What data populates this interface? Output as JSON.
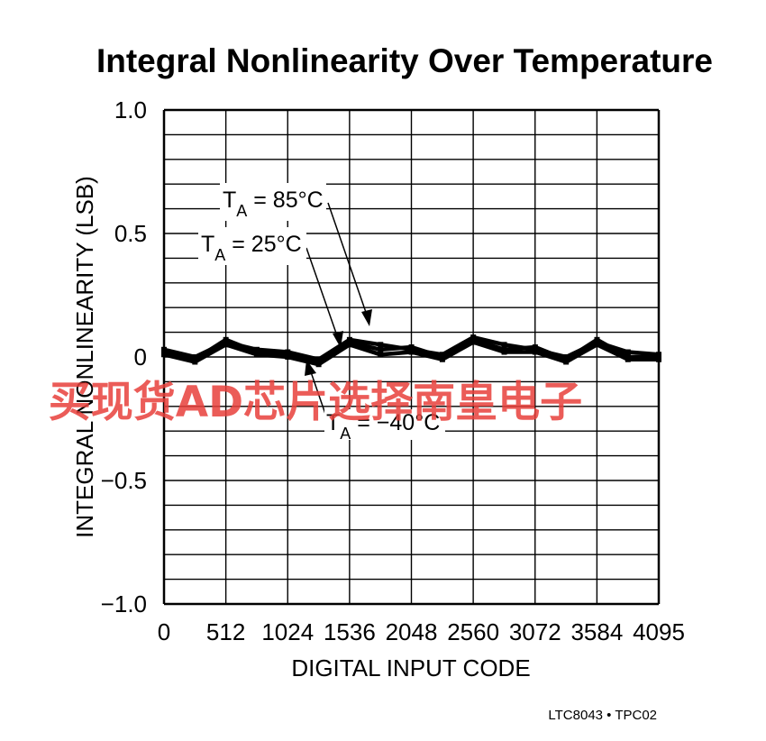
{
  "chart_data": {
    "type": "line",
    "title": "Integral Nonlinearity Over Temperature",
    "xlabel": "DIGITAL INPUT CODE",
    "ylabel": "INTEGRAL NONLINEARITY (LSB)",
    "xlim": [
      0,
      4095
    ],
    "ylim": [
      -1.0,
      1.0
    ],
    "x_ticks": [
      "0",
      "512",
      "1024",
      "1536",
      "2048",
      "2560",
      "3072",
      "3584",
      "4095"
    ],
    "y_ticks": [
      "1.0",
      "0.5",
      "0",
      "−0.5",
      "−1.0"
    ],
    "grid": true,
    "series": [
      {
        "name": "TA = 85°C",
        "x": [
          0,
          256,
          512,
          768,
          1024,
          1280,
          1536,
          1792,
          2048,
          2304,
          2560,
          2816,
          3072,
          3328,
          3584,
          3840,
          4095
        ],
        "y": [
          0.03,
          0.0,
          0.06,
          0.03,
          0.02,
          -0.01,
          0.07,
          0.05,
          0.03,
          0.01,
          0.08,
          0.05,
          0.03,
          0.0,
          0.06,
          0.02,
          0.01
        ]
      },
      {
        "name": "TA = 25°C",
        "x": [
          0,
          256,
          512,
          768,
          1024,
          1280,
          1536,
          1792,
          2048,
          2304,
          2560,
          2816,
          3072,
          3328,
          3584,
          3840,
          4095
        ],
        "y": [
          0.02,
          -0.01,
          0.07,
          0.02,
          0.01,
          -0.02,
          0.06,
          0.03,
          0.04,
          0.0,
          0.07,
          0.03,
          0.04,
          -0.01,
          0.07,
          0.0,
          0.0
        ]
      },
      {
        "name": "TA = −40°C",
        "x": [
          0,
          256,
          512,
          768,
          1024,
          1280,
          1536,
          1792,
          2048,
          2304,
          2560,
          2816,
          3072,
          3328,
          3584,
          3840,
          4095
        ],
        "y": [
          0.01,
          -0.02,
          0.05,
          0.01,
          0.0,
          -0.03,
          0.05,
          0.01,
          0.02,
          -0.01,
          0.06,
          0.02,
          0.02,
          -0.02,
          0.05,
          -0.01,
          -0.01
        ]
      }
    ],
    "annotations": [
      {
        "T": "T",
        "sub": "A",
        "rest": " = 85°C"
      },
      {
        "T": "T",
        "sub": "A",
        "rest": " = 25°C"
      },
      {
        "T": "T",
        "sub": "A",
        "rest": " = −40°C"
      }
    ],
    "footer": "LTC8043 • TPC02"
  },
  "watermark": "买现货AD芯片选择南皇电子",
  "colors": {
    "trace": "#000000",
    "grid": "#000000",
    "watermark": "#e8403b"
  }
}
